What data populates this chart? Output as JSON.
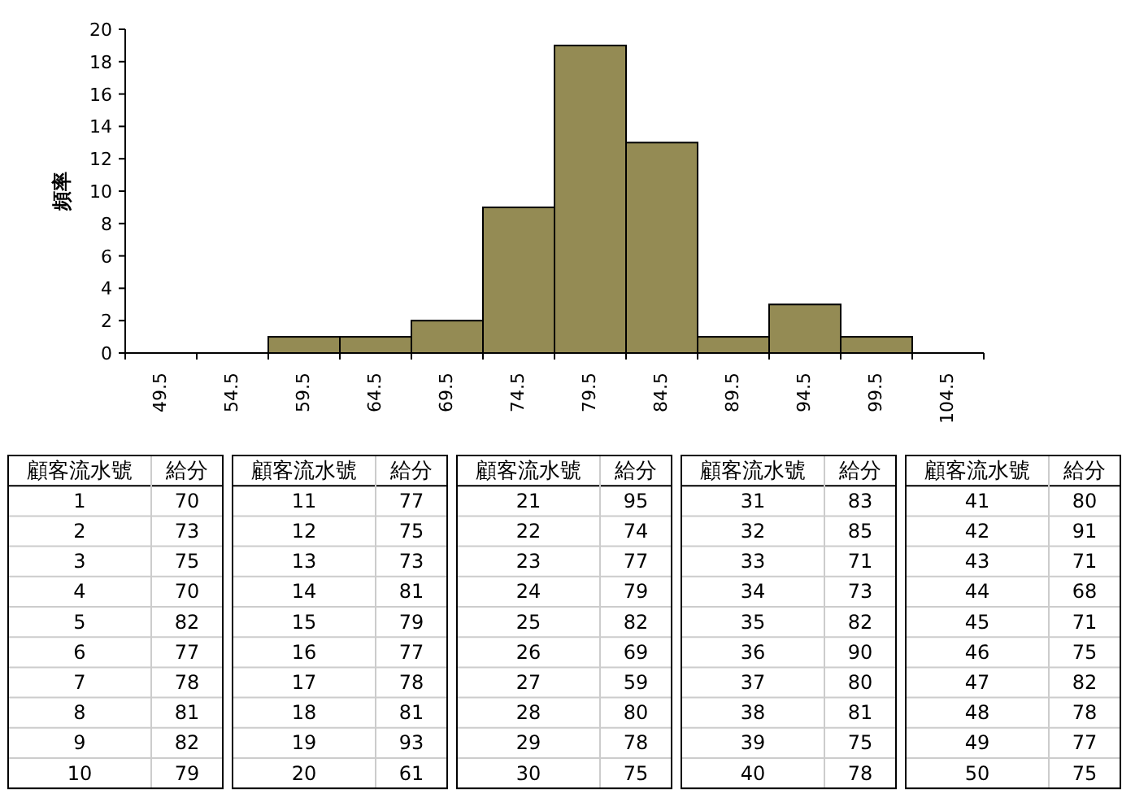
{
  "chart_data": {
    "type": "bar",
    "ylabel": "頻率",
    "categories": [
      "49.5",
      "54.5",
      "59.5",
      "64.5",
      "69.5",
      "74.5",
      "79.5",
      "84.5",
      "89.5",
      "94.5",
      "99.5",
      "104.5"
    ],
    "values": [
      0,
      0,
      1,
      1,
      2,
      9,
      19,
      13,
      1,
      3,
      1,
      0
    ],
    "color": "#948b54",
    "ylim": [
      0,
      20
    ],
    "yticks": [
      0,
      2,
      4,
      6,
      8,
      10,
      12,
      14,
      16,
      18,
      20
    ],
    "annotations": [
      "顧客流水號",
      "給分",
      "1",
      "70",
      "2",
      "73",
      "3",
      "75",
      "4",
      "70",
      "5",
      "82",
      "6",
      "77",
      "7",
      "78",
      "8",
      "81",
      "9",
      "82",
      "10",
      "79",
      "顧客流水號",
      "給分",
      "11",
      "77",
      "12",
      "75",
      "13",
      "73",
      "14",
      "81",
      "15",
      "79",
      "16",
      "77",
      "17",
      "78",
      "18",
      "81",
      "19",
      "93",
      "20",
      "61",
      "顧客流水號",
      "給分",
      "21",
      "95",
      "22",
      "74",
      "23",
      "77",
      "24",
      "79",
      "25",
      "82",
      "26",
      "69",
      "27",
      "59",
      "28",
      "80",
      "29",
      "78",
      "30",
      "75",
      "顧客流水號",
      "給分",
      "31",
      "83",
      "32",
      "85",
      "33",
      "71",
      "34",
      "73",
      "35",
      "82",
      "36",
      "90",
      "37",
      "80",
      "38",
      "81",
      "39",
      "75",
      "40",
      "78",
      "顧客流水號",
      "給分",
      "41",
      "80",
      "42",
      "91",
      "43",
      "71",
      "44",
      "68",
      "45",
      "71",
      "46",
      "75",
      "47",
      "82",
      "48",
      "78",
      "49",
      "77",
      "50",
      "75"
    ]
  }
}
